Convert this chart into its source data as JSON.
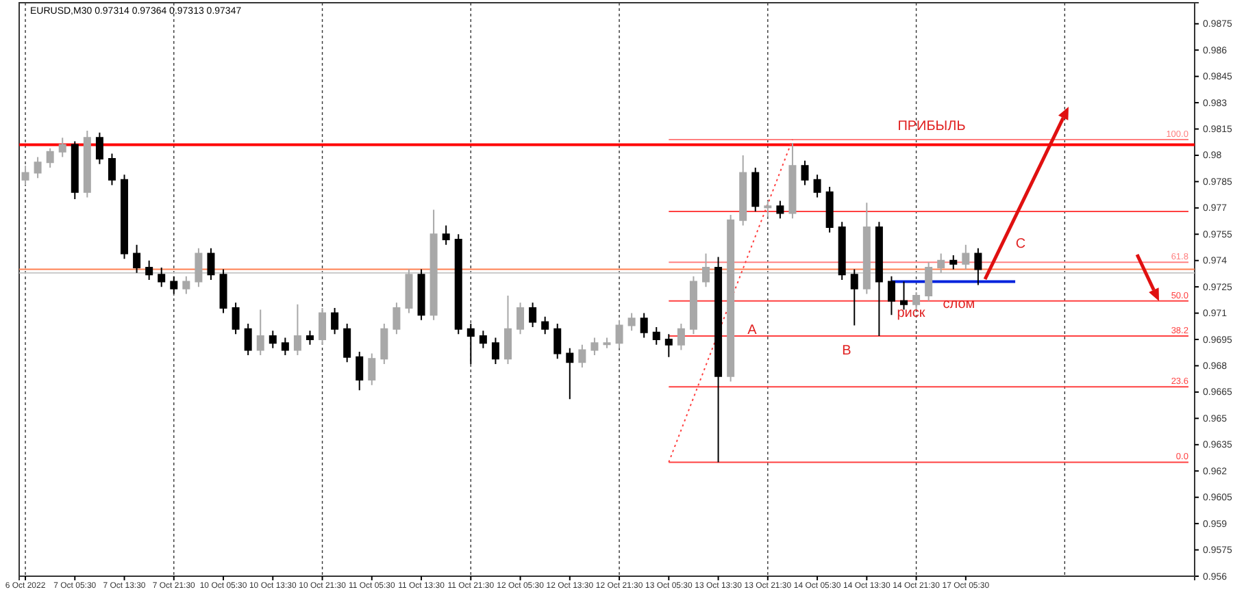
{
  "chart_data": {
    "type": "candlestick",
    "title": "EURUSD,M30  0.97314 0.97364 0.97313 0.97347",
    "categories": [
      "6 Oct 2022",
      null,
      null,
      null,
      "7 Oct 05:30",
      null,
      null,
      null,
      "7 Oct 13:30",
      null,
      null,
      null,
      "7 Oct 21:30",
      null,
      null,
      null,
      "10 Oct 05:30",
      null,
      null,
      null,
      "10 Oct 13:30",
      null,
      null,
      null,
      "10 Oct 21:30",
      null,
      null,
      null,
      "11 Oct 05:30",
      null,
      null,
      null,
      "11 Oct 13:30",
      null,
      null,
      null,
      "11 Oct 21:30",
      null,
      null,
      null,
      "12 Oct 05:30",
      null,
      null,
      null,
      "12 Oct 13:30",
      null,
      null,
      null,
      "12 Oct 21:30",
      null,
      null,
      null,
      "13 Oct 05:30",
      null,
      null,
      null,
      "13 Oct 13:30",
      null,
      null,
      null,
      "13 Oct 21:30",
      null,
      null,
      null,
      "14 Oct 05:30",
      null,
      null,
      null,
      "14 Oct 13:30",
      null,
      null,
      null,
      "14 Oct 21:30",
      null,
      null,
      null,
      "17 Oct 05:30",
      null,
      null,
      null,
      null,
      null,
      null,
      null,
      null,
      null,
      null,
      null,
      null,
      null,
      null,
      null,
      null,
      null,
      null
    ],
    "ohlc": [
      [
        0.9786,
        0.9794,
        0.9783,
        0.979
      ],
      [
        0.979,
        0.9799,
        0.9787,
        0.9796
      ],
      [
        0.9796,
        0.9804,
        0.9793,
        0.9802
      ],
      [
        0.9802,
        0.981,
        0.9799,
        0.9806
      ],
      [
        0.9806,
        0.9808,
        0.9775,
        0.9779
      ],
      [
        0.9779,
        0.9814,
        0.9776,
        0.981
      ],
      [
        0.981,
        0.9813,
        0.9795,
        0.9798
      ],
      [
        0.9798,
        0.9801,
        0.9783,
        0.9786
      ],
      [
        0.9786,
        0.9789,
        0.9741,
        0.9744
      ],
      [
        0.9744,
        0.9749,
        0.9733,
        0.9736
      ],
      [
        0.9736,
        0.974,
        0.9729,
        0.9732
      ],
      [
        0.9732,
        0.9736,
        0.9725,
        0.9728
      ],
      [
        0.9728,
        0.9731,
        0.9721,
        0.9724
      ],
      [
        0.9724,
        0.9731,
        0.9721,
        0.9728
      ],
      [
        0.9728,
        0.9747,
        0.9725,
        0.9744
      ],
      [
        0.9744,
        0.9747,
        0.9729,
        0.9732
      ],
      [
        0.9732,
        0.9735,
        0.971,
        0.9713
      ],
      [
        0.9713,
        0.9716,
        0.9698,
        0.9701
      ],
      [
        0.9701,
        0.9704,
        0.9686,
        0.9689
      ],
      [
        0.9689,
        0.9712,
        0.9686,
        0.9697
      ],
      [
        0.9697,
        0.97,
        0.969,
        0.9693
      ],
      [
        0.9693,
        0.9696,
        0.9686,
        0.9689
      ],
      [
        0.9689,
        0.9715,
        0.9686,
        0.9697
      ],
      [
        0.9697,
        0.97,
        0.9692,
        0.9695
      ],
      [
        0.9695,
        0.9713,
        0.9692,
        0.971
      ],
      [
        0.971,
        0.9713,
        0.9698,
        0.9701
      ],
      [
        0.9701,
        0.9704,
        0.9682,
        0.9685
      ],
      [
        0.9685,
        0.9688,
        0.9666,
        0.9672
      ],
      [
        0.9672,
        0.9687,
        0.9669,
        0.9684
      ],
      [
        0.9684,
        0.9704,
        0.9681,
        0.9701
      ],
      [
        0.9701,
        0.9716,
        0.9698,
        0.9713
      ],
      [
        0.9713,
        0.9735,
        0.971,
        0.9732
      ],
      [
        0.9732,
        0.9735,
        0.9706,
        0.9709
      ],
      [
        0.9709,
        0.9769,
        0.9706,
        0.9755
      ],
      [
        0.9755,
        0.976,
        0.9749,
        0.9752
      ],
      [
        0.9752,
        0.9755,
        0.9698,
        0.9701
      ],
      [
        0.9701,
        0.9704,
        0.9681,
        0.9697
      ],
      [
        0.9697,
        0.97,
        0.969,
        0.9693
      ],
      [
        0.9693,
        0.9696,
        0.9681,
        0.9684
      ],
      [
        0.9684,
        0.972,
        0.9681,
        0.9701
      ],
      [
        0.9701,
        0.9716,
        0.9698,
        0.9713
      ],
      [
        0.9713,
        0.9716,
        0.9702,
        0.9705
      ],
      [
        0.9705,
        0.9708,
        0.9698,
        0.9701
      ],
      [
        0.9701,
        0.9704,
        0.9684,
        0.9687
      ],
      [
        0.9687,
        0.969,
        0.9661,
        0.9682
      ],
      [
        0.9682,
        0.9692,
        0.9679,
        0.9689
      ],
      [
        0.9689,
        0.9696,
        0.9686,
        0.9693
      ],
      [
        0.9693,
        0.9696,
        0.969,
        0.9693
      ],
      [
        0.9693,
        0.9706,
        0.969,
        0.9703
      ],
      [
        0.9703,
        0.971,
        0.97,
        0.9707
      ],
      [
        0.9707,
        0.971,
        0.9696,
        0.9699
      ],
      [
        0.9699,
        0.9702,
        0.9692,
        0.9695
      ],
      [
        0.9695,
        0.9698,
        0.9685,
        0.9692
      ],
      [
        0.9692,
        0.9704,
        0.9689,
        0.9701
      ],
      [
        0.9701,
        0.9731,
        0.9698,
        0.9728
      ],
      [
        0.9728,
        0.9744,
        0.9725,
        0.9736
      ],
      [
        0.9736,
        0.9742,
        0.9625,
        0.9674
      ],
      [
        0.9674,
        0.9766,
        0.9671,
        0.9763
      ],
      [
        0.9763,
        0.98,
        0.976,
        0.979
      ],
      [
        0.979,
        0.9793,
        0.9768,
        0.9771
      ],
      [
        0.9771,
        0.9774,
        0.9765,
        0.9771
      ],
      [
        0.9771,
        0.9774,
        0.9764,
        0.9767
      ],
      [
        0.9767,
        0.9807,
        0.9764,
        0.9794
      ],
      [
        0.9794,
        0.9797,
        0.9783,
        0.9786
      ],
      [
        0.9786,
        0.9789,
        0.9776,
        0.9779
      ],
      [
        0.9779,
        0.9782,
        0.9756,
        0.9759
      ],
      [
        0.9759,
        0.9762,
        0.9729,
        0.9732
      ],
      [
        0.9732,
        0.9735,
        0.9703,
        0.9724
      ],
      [
        0.9724,
        0.9773,
        0.9721,
        0.9759
      ],
      [
        0.9759,
        0.9762,
        0.9697,
        0.9728
      ],
      [
        0.9728,
        0.9731,
        0.9709,
        0.9717
      ],
      [
        0.9717,
        0.9728,
        0.9712,
        0.9715
      ],
      [
        0.9715,
        0.9722,
        0.9712,
        0.972
      ],
      [
        0.972,
        0.9739,
        0.9717,
        0.9736
      ],
      [
        0.9736,
        0.9744,
        0.9733,
        0.974
      ],
      [
        0.974,
        0.9743,
        0.9735,
        0.9738
      ],
      [
        0.9738,
        0.9749,
        0.9735,
        0.9744
      ],
      [
        0.9744,
        0.9747,
        0.9726,
        0.9735
      ],
      null,
      null,
      null,
      null,
      null,
      null,
      null,
      null,
      null,
      null,
      null,
      null,
      null,
      null,
      null,
      null,
      null
    ],
    "series": [
      {
        "type": "line",
        "name": "100.0",
        "color": "#ff8080",
        "values": [
          null,
          null,
          null,
          null,
          null,
          null,
          null,
          null,
          null,
          null,
          null,
          null,
          null,
          null,
          null,
          null,
          null,
          null,
          null,
          null,
          null,
          null,
          null,
          null,
          null,
          null,
          null,
          null,
          null,
          null,
          null,
          null,
          null,
          null,
          null,
          null,
          null,
          null,
          null,
          null,
          null,
          null,
          null,
          null,
          null,
          null,
          null,
          null,
          null,
          null,
          null,
          null,
          0.9809,
          null,
          null,
          null,
          null,
          null,
          null,
          null,
          null,
          null,
          null,
          null,
          null,
          null,
          null,
          null,
          null,
          null,
          null,
          null,
          null,
          null,
          null,
          null,
          null,
          null,
          null,
          null,
          null,
          null,
          null,
          null,
          null,
          null,
          null,
          null,
          null,
          null,
          null,
          null,
          null,
          null,
          0.9809
        ]
      },
      {
        "type": "line",
        "color": "#ff4040",
        "values": [
          null,
          null,
          null,
          null,
          null,
          null,
          null,
          null,
          null,
          null,
          null,
          null,
          null,
          null,
          null,
          null,
          null,
          null,
          null,
          null,
          null,
          null,
          null,
          null,
          null,
          null,
          null,
          null,
          null,
          null,
          null,
          null,
          null,
          null,
          null,
          null,
          null,
          null,
          null,
          null,
          null,
          null,
          null,
          null,
          null,
          null,
          null,
          null,
          null,
          null,
          null,
          null,
          0.9768,
          null,
          null,
          null,
          null,
          null,
          null,
          null,
          null,
          null,
          null,
          null,
          null,
          null,
          null,
          null,
          null,
          null,
          null,
          null,
          null,
          null,
          null,
          null,
          null,
          null,
          null,
          null,
          null,
          null,
          null,
          null,
          null,
          null,
          null,
          null,
          null,
          null,
          null,
          null,
          null,
          null,
          0.9768
        ]
      },
      {
        "type": "line",
        "name": "61.8",
        "color": "#ff8080",
        "values": [
          null,
          null,
          null,
          null,
          null,
          null,
          null,
          null,
          null,
          null,
          null,
          null,
          null,
          null,
          null,
          null,
          null,
          null,
          null,
          null,
          null,
          null,
          null,
          null,
          null,
          null,
          null,
          null,
          null,
          null,
          null,
          null,
          null,
          null,
          null,
          null,
          null,
          null,
          null,
          null,
          null,
          null,
          null,
          null,
          null,
          null,
          null,
          null,
          null,
          null,
          null,
          null,
          0.9739,
          null,
          null,
          null,
          null,
          null,
          null,
          null,
          null,
          null,
          null,
          null,
          null,
          null,
          null,
          null,
          null,
          null,
          null,
          null,
          null,
          null,
          null,
          null,
          null,
          null,
          null,
          null,
          null,
          null,
          null,
          null,
          null,
          null,
          null,
          null,
          null,
          null,
          null,
          null,
          null,
          null,
          0.9739
        ]
      },
      {
        "type": "line",
        "name": "50.0",
        "color": "#ff4040",
        "values": [
          null,
          null,
          null,
          null,
          null,
          null,
          null,
          null,
          null,
          null,
          null,
          null,
          null,
          null,
          null,
          null,
          null,
          null,
          null,
          null,
          null,
          null,
          null,
          null,
          null,
          null,
          null,
          null,
          null,
          null,
          null,
          null,
          null,
          null,
          null,
          null,
          null,
          null,
          null,
          null,
          null,
          null,
          null,
          null,
          null,
          null,
          null,
          null,
          null,
          null,
          null,
          null,
          0.9717,
          null,
          null,
          null,
          null,
          null,
          null,
          null,
          null,
          null,
          null,
          null,
          null,
          null,
          null,
          null,
          null,
          null,
          null,
          null,
          null,
          null,
          null,
          null,
          null,
          null,
          null,
          null,
          null,
          null,
          null,
          null,
          null,
          null,
          null,
          null,
          null,
          null,
          null,
          null,
          null,
          null,
          0.9717
        ]
      },
      {
        "type": "line",
        "name": "38.2",
        "color": "#ff4040",
        "values": [
          null,
          null,
          null,
          null,
          null,
          null,
          null,
          null,
          null,
          null,
          null,
          null,
          null,
          null,
          null,
          null,
          null,
          null,
          null,
          null,
          null,
          null,
          null,
          null,
          null,
          null,
          null,
          null,
          null,
          null,
          null,
          null,
          null,
          null,
          null,
          null,
          null,
          null,
          null,
          null,
          null,
          null,
          null,
          null,
          null,
          null,
          null,
          null,
          null,
          null,
          null,
          null,
          0.9697,
          null,
          null,
          null,
          null,
          null,
          null,
          null,
          null,
          null,
          null,
          null,
          null,
          null,
          null,
          null,
          null,
          null,
          null,
          null,
          null,
          null,
          null,
          null,
          null,
          null,
          null,
          null,
          null,
          null,
          null,
          null,
          null,
          null,
          null,
          null,
          null,
          null,
          null,
          null,
          null,
          null,
          0.9697
        ]
      },
      {
        "type": "line",
        "name": "23.6",
        "color": "#ff4040",
        "values": [
          null,
          null,
          null,
          null,
          null,
          null,
          null,
          null,
          null,
          null,
          null,
          null,
          null,
          null,
          null,
          null,
          null,
          null,
          null,
          null,
          null,
          null,
          null,
          null,
          null,
          null,
          null,
          null,
          null,
          null,
          null,
          null,
          null,
          null,
          null,
          null,
          null,
          null,
          null,
          null,
          null,
          null,
          null,
          null,
          null,
          null,
          null,
          null,
          null,
          null,
          null,
          null,
          0.9668,
          null,
          null,
          null,
          null,
          null,
          null,
          null,
          null,
          null,
          null,
          null,
          null,
          null,
          null,
          null,
          null,
          null,
          null,
          null,
          null,
          null,
          null,
          null,
          null,
          null,
          null,
          null,
          null,
          null,
          null,
          null,
          null,
          null,
          null,
          null,
          null,
          null,
          null,
          null,
          null,
          null,
          0.9668
        ]
      },
      {
        "type": "line",
        "name": "0.0",
        "color": "#ff4040",
        "values": [
          null,
          null,
          null,
          null,
          null,
          null,
          null,
          null,
          null,
          null,
          null,
          null,
          null,
          null,
          null,
          null,
          null,
          null,
          null,
          null,
          null,
          null,
          null,
          null,
          null,
          null,
          null,
          null,
          null,
          null,
          null,
          null,
          null,
          null,
          null,
          null,
          null,
          null,
          null,
          null,
          null,
          null,
          null,
          null,
          null,
          null,
          null,
          null,
          null,
          null,
          null,
          null,
          0.9625,
          null,
          null,
          null,
          null,
          null,
          null,
          null,
          null,
          null,
          null,
          null,
          null,
          null,
          null,
          null,
          null,
          null,
          null,
          null,
          null,
          null,
          null,
          null,
          null,
          null,
          null,
          null,
          null,
          null,
          null,
          null,
          null,
          null,
          null,
          null,
          null,
          null,
          null,
          null,
          null,
          null,
          0.9625
        ]
      },
      {
        "type": "line",
        "color": "#ff4040",
        "line_style": "dotted",
        "values": [
          null,
          null,
          null,
          null,
          null,
          null,
          null,
          null,
          null,
          null,
          null,
          null,
          null,
          null,
          null,
          null,
          null,
          null,
          null,
          null,
          null,
          null,
          null,
          null,
          null,
          null,
          null,
          null,
          null,
          null,
          null,
          null,
          null,
          null,
          null,
          null,
          null,
          null,
          null,
          null,
          null,
          null,
          null,
          null,
          null,
          null,
          null,
          null,
          null,
          null,
          null,
          null,
          0.9625,
          null,
          null,
          null,
          null,
          null,
          null,
          null,
          null,
          null,
          0.9809,
          null,
          null,
          null,
          null,
          null,
          null,
          null,
          null,
          null,
          null,
          null,
          null,
          null,
          null,
          null,
          null,
          null,
          null,
          null,
          null,
          null,
          null,
          null,
          null,
          null,
          null,
          null,
          null,
          null,
          null,
          null,
          null
        ]
      },
      {
        "type": "line",
        "color": "#0022dd",
        "values": [
          null,
          null,
          null,
          null,
          null,
          null,
          null,
          null,
          null,
          null,
          null,
          null,
          null,
          null,
          null,
          null,
          null,
          null,
          null,
          null,
          null,
          null,
          null,
          null,
          null,
          null,
          null,
          null,
          null,
          null,
          null,
          null,
          null,
          null,
          null,
          null,
          null,
          null,
          null,
          null,
          null,
          null,
          null,
          null,
          null,
          null,
          null,
          null,
          null,
          null,
          null,
          null,
          null,
          null,
          null,
          null,
          null,
          null,
          null,
          null,
          null,
          null,
          null,
          null,
          null,
          null,
          null,
          null,
          null,
          null,
          0.9728,
          null,
          null,
          null,
          null,
          null,
          null,
          null,
          null,
          null,
          0.9728,
          null,
          null,
          null,
          null,
          null,
          null,
          null,
          null,
          null,
          null,
          null,
          null,
          null,
          null
        ]
      }
    ],
    "ref_lines": [
      {
        "axis": "y",
        "value": 0.9806,
        "color": "#ff0000"
      },
      {
        "axis": "y",
        "value": 0.9735,
        "color": "#ff7f50"
      },
      {
        "axis": "y",
        "value": 0.9733,
        "color": "#c8c8c8"
      }
    ],
    "ylim": [
      0.956,
      0.9887
    ],
    "yticks": [
      0.9875,
      0.986,
      0.9845,
      0.983,
      0.9815,
      0.98,
      0.9785,
      0.977,
      0.9755,
      0.974,
      0.9725,
      0.971,
      0.9695,
      0.968,
      0.9665,
      0.965,
      0.9635,
      0.962,
      0.9605,
      0.959,
      0.9575,
      0.956
    ],
    "grid": "x",
    "annotations": [
      "ПРИБЫЛЬ",
      "A",
      "B",
      "C",
      {
        "text": "риск",
        "y": 0.9711
      },
      "слом"
    ]
  }
}
